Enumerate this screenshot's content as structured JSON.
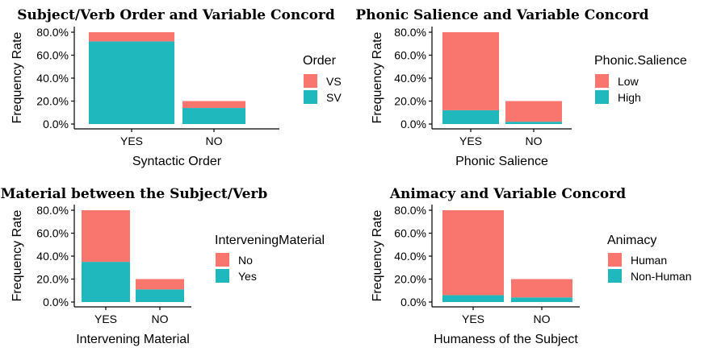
{
  "colors": {
    "accent_red": "#F8766D",
    "accent_teal": "#1FB8BC"
  },
  "chart_data": [
    {
      "type": "bar",
      "title": "Subject/Verb Order and Variable Concord",
      "xlabel": "Syntactic Order",
      "ylabel": "Frequency Rate",
      "categories": [
        "YES",
        "NO"
      ],
      "ylim": [
        0,
        0.8
      ],
      "yticks": [
        "0.0%",
        "20.0%",
        "40.0%",
        "60.0%",
        "80.0%"
      ],
      "legend_title": "Order",
      "series": [
        {
          "name": "VS",
          "color": "#F8766D",
          "values": [
            0.08,
            0.06
          ]
        },
        {
          "name": "SV",
          "color": "#1FB8BC",
          "values": [
            0.72,
            0.14
          ]
        }
      ]
    },
    {
      "type": "bar",
      "title": "Phonic Salience and Variable Concord",
      "xlabel": "Phonic Salience",
      "ylabel": "Frequency Rate",
      "categories": [
        "YES",
        "NO"
      ],
      "ylim": [
        0,
        0.8
      ],
      "yticks": [
        "0.0%",
        "20.0%",
        "40.0%",
        "60.0%",
        "80.0%"
      ],
      "legend_title": "Phonic.Salience",
      "series": [
        {
          "name": "Low",
          "color": "#F8766D",
          "values": [
            0.68,
            0.18
          ]
        },
        {
          "name": "High",
          "color": "#1FB8BC",
          "values": [
            0.12,
            0.02
          ]
        }
      ]
    },
    {
      "type": "bar",
      "title": "Material between the Subject/Verb",
      "xlabel": "Intervening Material",
      "ylabel": "Frequency Rate",
      "categories": [
        "YES",
        "NO"
      ],
      "ylim": [
        0,
        0.8
      ],
      "yticks": [
        "0.0%",
        "20.0%",
        "40.0%",
        "60.0%",
        "80.0%"
      ],
      "legend_title": "InterveningMaterial",
      "series": [
        {
          "name": "No",
          "color": "#F8766D",
          "values": [
            0.45,
            0.09
          ]
        },
        {
          "name": "Yes",
          "color": "#1FB8BC",
          "values": [
            0.35,
            0.11
          ]
        }
      ]
    },
    {
      "type": "bar",
      "title": "Animacy and Variable Concord",
      "xlabel": "Humaness of the Subject",
      "ylabel": "Frequency Rate",
      "categories": [
        "YES",
        "NO"
      ],
      "ylim": [
        0,
        0.8
      ],
      "yticks": [
        "0.0%",
        "20.0%",
        "40.0%",
        "60.0%",
        "80.0%"
      ],
      "legend_title": "Animacy",
      "series": [
        {
          "name": "Human",
          "color": "#F8766D",
          "values": [
            0.74,
            0.16
          ]
        },
        {
          "name": "Non-Human",
          "color": "#1FB8BC",
          "values": [
            0.06,
            0.04
          ]
        }
      ]
    }
  ]
}
